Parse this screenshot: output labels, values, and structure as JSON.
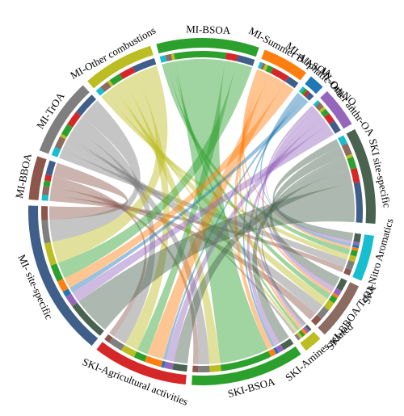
{
  "chart_data": {
    "type": "chord",
    "row_groups": [
      {
        "name": "MI-BBOA",
        "color": "#8c564b"
      },
      {
        "name": "MI-TrOA",
        "color": "#7f7f7f"
      },
      {
        "name": "MI-Other combustions",
        "color": "#bcbd22"
      },
      {
        "name": "MI-BSOA",
        "color": "#2ca02c"
      },
      {
        "name": "MI-Summer B/ASOA",
        "color": "#ff7f0e"
      },
      {
        "name": "MI-Aliphatic-OrgNO₃",
        "color": "#1f77b4"
      },
      {
        "name": "MI-Other anthr-OA",
        "color": "#9467bd"
      },
      {
        "name": "SKI site-specific",
        "color": "#4a6350"
      }
    ],
    "column_groups": [
      {
        "name": "SKI-Nitro Aromatics",
        "color": "#17becf"
      },
      {
        "name": "SKI-BBOA/TrOA",
        "color": "#8c6b60"
      },
      {
        "name": "SKI-Amines related",
        "color": "#bcbd22"
      },
      {
        "name": "SKI-BSOA",
        "color": "#2ca02c"
      },
      {
        "name": "SKI-Agricultural activities",
        "color": "#d62728"
      },
      {
        "name": "MI- site-specific",
        "color": "#3f5f8a"
      }
    ],
    "matrix": [
      [
        2,
        3,
        0,
        2,
        2,
        5
      ],
      [
        3,
        4,
        1,
        4,
        5,
        8
      ],
      [
        2,
        3,
        1,
        4,
        5,
        8
      ],
      [
        2,
        2,
        1,
        18,
        4,
        6
      ],
      [
        1,
        1,
        1,
        2,
        6,
        4
      ],
      [
        1,
        0,
        0,
        1,
        1,
        2
      ],
      [
        1,
        2,
        1,
        2,
        3,
        4
      ],
      [
        3,
        4,
        1,
        4,
        5,
        14
      ]
    ]
  }
}
